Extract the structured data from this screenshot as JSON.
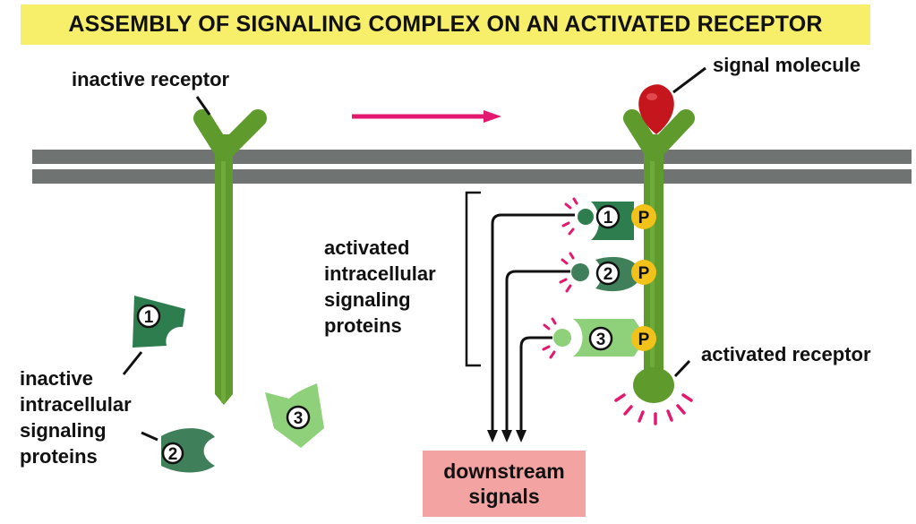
{
  "title": "ASSEMBLY OF SIGNALING COMPLEX ON AN ACTIVATED RECEPTOR",
  "labels": {
    "inactive_receptor": "inactive receptor",
    "signal_molecule": "signal molecule",
    "activated_receptor": "activated receptor",
    "activated_proteins": [
      "activated",
      "intracellular",
      "signaling",
      "proteins"
    ],
    "inactive_proteins": [
      "inactive",
      "intracellular",
      "signaling",
      "proteins"
    ],
    "downstream": [
      "downstream",
      "signals"
    ]
  },
  "protein_numbers": [
    "1",
    "2",
    "3"
  ],
  "phosphate_label": "P",
  "colors": {
    "title_bg": "#f7ef6a",
    "membrane": "#6f7472",
    "receptor": "#5e9a2c",
    "protein_1": "#2e7d4f",
    "protein_2": "#3f7f5a",
    "protein_3": "#8fd07a",
    "phosphate": "#f2c21a",
    "signal_molecule": "#c4161c",
    "arrow": "#e3186f",
    "downstream_bg": "#f4a3a3"
  }
}
